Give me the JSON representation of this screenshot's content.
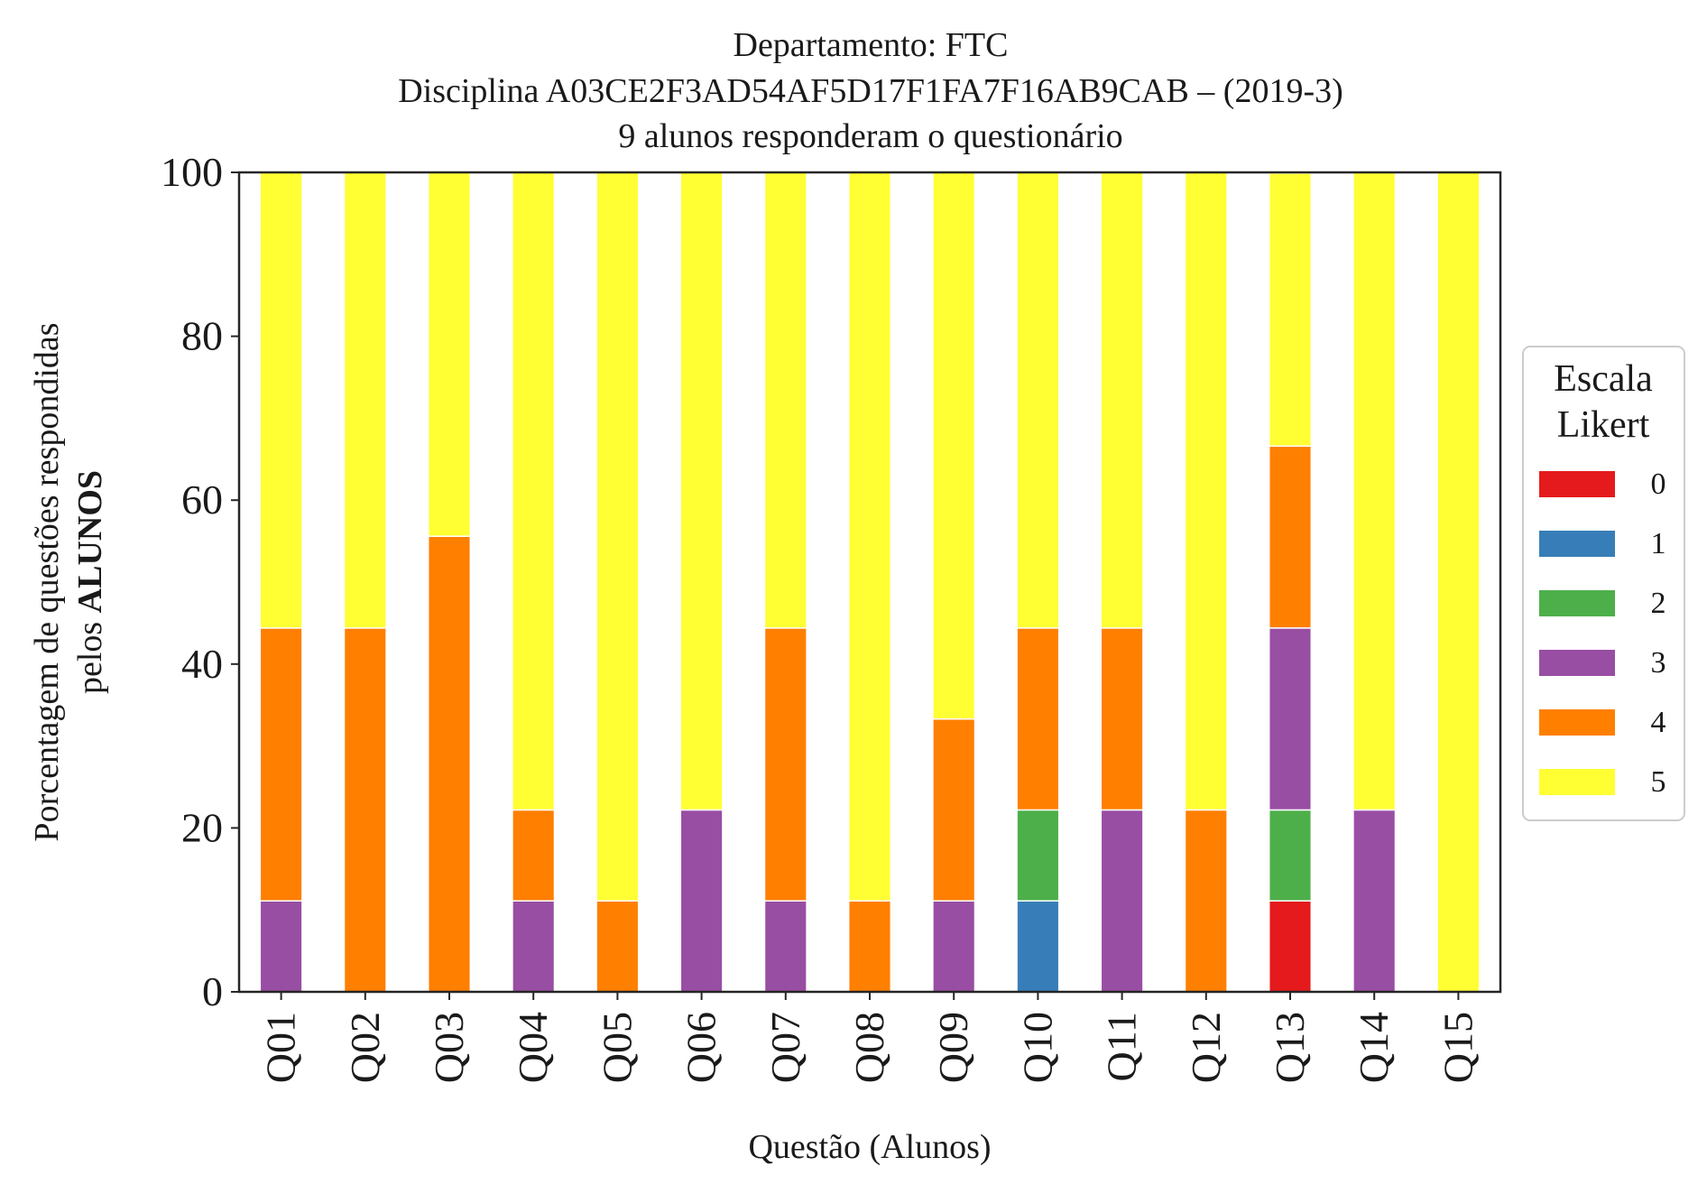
{
  "chart_data": {
    "type": "bar",
    "stacked": true,
    "title_lines": [
      "Departamento: FTC",
      "Disciplina A03CE2F3AD54AF5D17F1FA7F16AB9CAB – (2019-3)",
      "9 alunos responderam o questionário"
    ],
    "xlabel": "Questão (Alunos)",
    "ylabel_line1": "Porcentagem de questões respondidas",
    "ylabel_line2_prefix": "pelos ",
    "ylabel_line2_bold": "ALUNOS",
    "ylim": [
      0,
      100
    ],
    "yticks": [
      "0",
      "20",
      "40",
      "60",
      "80",
      "100"
    ],
    "grid": false,
    "legend": {
      "title_lines": [
        "Escala",
        "Likert"
      ],
      "placement": "right-center"
    },
    "categories": [
      "Q01",
      "Q02",
      "Q03",
      "Q04",
      "Q05",
      "Q06",
      "Q07",
      "Q08",
      "Q09",
      "Q10",
      "Q11",
      "Q12",
      "Q13",
      "Q14",
      "Q15"
    ],
    "series": [
      {
        "name": "0",
        "color": "#e41a1c",
        "values": [
          0,
          0,
          0,
          0,
          0,
          0,
          0,
          0,
          0,
          0,
          0,
          0,
          11.1,
          0,
          0
        ]
      },
      {
        "name": "1",
        "color": "#377eb8",
        "values": [
          0,
          0,
          0,
          0,
          0,
          0,
          0,
          0,
          0,
          11.1,
          0,
          0,
          0,
          0,
          0
        ]
      },
      {
        "name": "2",
        "color": "#4daf4a",
        "values": [
          0,
          0,
          0,
          0,
          0,
          0,
          0,
          0,
          0,
          11.1,
          0,
          0,
          11.1,
          0,
          0
        ]
      },
      {
        "name": "3",
        "color": "#984ea3",
        "values": [
          11.1,
          0,
          0,
          11.1,
          0,
          22.2,
          11.1,
          0,
          11.1,
          0,
          22.2,
          0,
          22.2,
          22.2,
          0
        ]
      },
      {
        "name": "4",
        "color": "#ff7f00",
        "values": [
          33.3,
          44.4,
          55.6,
          11.1,
          11.1,
          0,
          33.3,
          11.1,
          22.2,
          22.2,
          22.2,
          22.2,
          22.2,
          0,
          0
        ]
      },
      {
        "name": "5",
        "color": "#ffff33",
        "values": [
          55.6,
          55.6,
          44.4,
          77.8,
          88.9,
          77.8,
          55.6,
          88.9,
          66.7,
          55.6,
          55.6,
          77.8,
          33.3,
          77.8,
          100
        ]
      }
    ]
  }
}
